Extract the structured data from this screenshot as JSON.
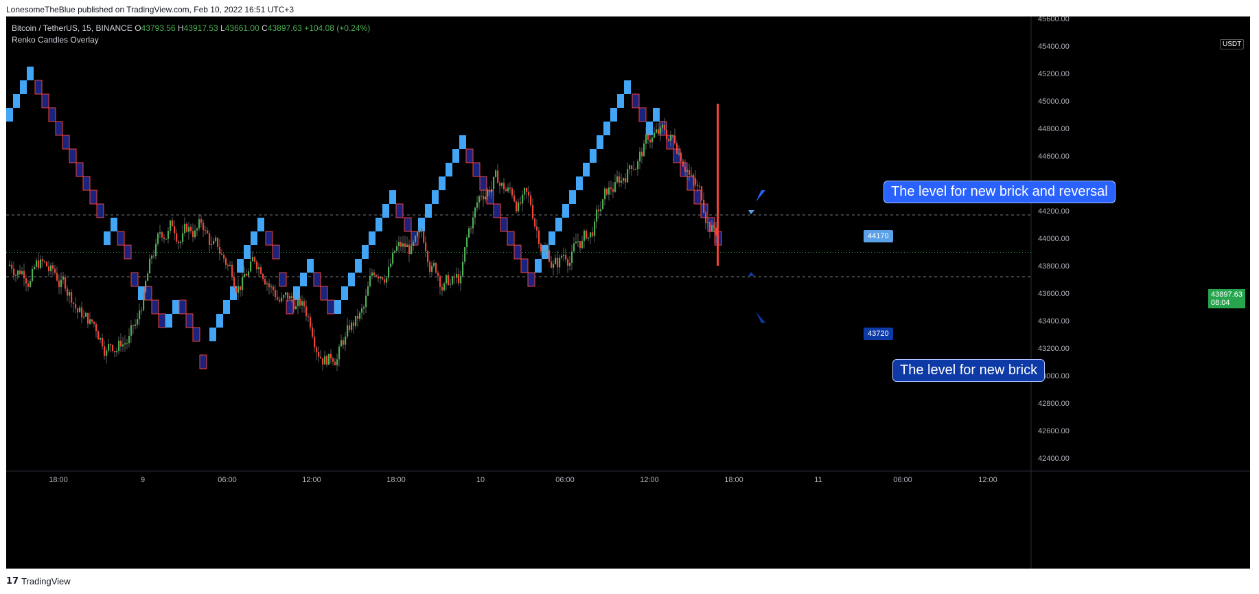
{
  "header": {
    "published": "LonesomeTheBlue published on TradingView.com, Feb 10, 2022 16:51 UTC+3"
  },
  "legend": {
    "symbol": "Bitcoin / TetherUS, 15, BINANCE",
    "o_label": "O",
    "o_val": "43793.56",
    "h_label": "H",
    "h_val": "43917.53",
    "l_label": "L",
    "l_val": "43661.00",
    "c_label": "C",
    "c_val": "43897.63",
    "change": "+104.08 (+0.24%)",
    "indicator": "Renko Candles Overlay"
  },
  "price_axis": {
    "currency": "USDT",
    "labels": [
      "45600.00",
      "45400.00",
      "45200.00",
      "45000.00",
      "44800.00",
      "44600.00",
      "44400.00",
      "44200.00",
      "44000.00",
      "43800.00",
      "43600.00",
      "43400.00",
      "43200.00",
      "43000.00",
      "42800.00",
      "42600.00",
      "42400.00"
    ],
    "current_price": "43897.63",
    "countdown": "08:04"
  },
  "time_axis": {
    "labels": [
      "18:00",
      "9",
      "06:00",
      "12:00",
      "18:00",
      "10",
      "06:00",
      "12:00",
      "18:00",
      "11",
      "06:00",
      "12:00"
    ]
  },
  "levels": {
    "upper": "44170",
    "lower": "43720"
  },
  "annotations": {
    "reversal": "The level for new brick and reversal",
    "new_brick": "The level for new brick"
  },
  "colors": {
    "bg": "#000000",
    "bull_candle": "#4caf50",
    "bear_candle": "#f44336",
    "renko_up": "#42a5f5",
    "renko_down": "#1a237e",
    "grid_line": "#787b86",
    "current_line": "#26a54e"
  },
  "footer": {
    "brand": "TradingView",
    "logo_icon": "tradingview-logo-icon"
  }
}
